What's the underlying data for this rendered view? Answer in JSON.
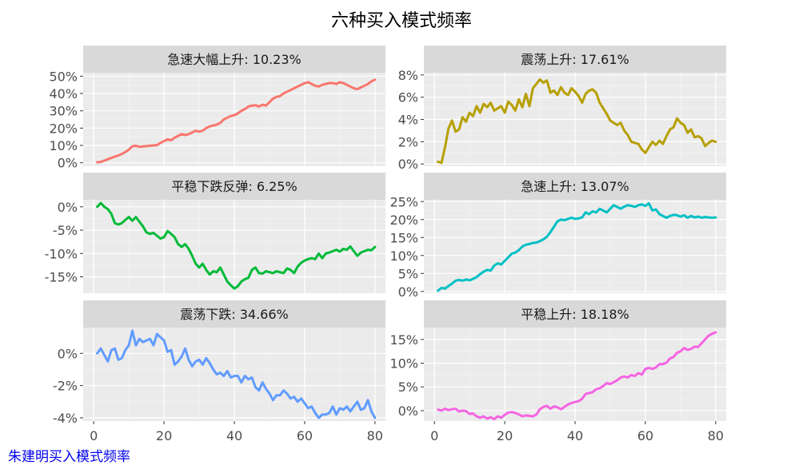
{
  "figure": {
    "title": "六种买入模式频率",
    "footer_link": "朱建明买入模式频率"
  },
  "chart_data": [
    {
      "type": "line",
      "title": "急速大幅上升: 10.23%",
      "color": "#F8766D",
      "xlim": [
        -3,
        83
      ],
      "ylim": [
        -2,
        52
      ],
      "yticks": [
        0,
        10,
        20,
        30,
        40,
        50
      ],
      "ytick_labels": [
        "0%",
        "10%",
        "20%",
        "30%",
        "40%",
        "50%"
      ],
      "x": [
        1,
        2,
        3,
        4,
        5,
        6,
        7,
        8,
        9,
        10,
        11,
        12,
        13,
        14,
        15,
        16,
        17,
        18,
        19,
        20,
        21,
        22,
        23,
        24,
        25,
        26,
        27,
        28,
        29,
        30,
        31,
        32,
        33,
        34,
        35,
        36,
        37,
        38,
        39,
        40,
        41,
        42,
        43,
        44,
        45,
        46,
        47,
        48,
        49,
        50,
        51,
        52,
        53,
        54,
        55,
        56,
        57,
        58,
        59,
        60,
        61,
        62,
        63,
        64,
        65,
        66,
        67,
        68,
        69,
        70,
        71,
        72,
        73,
        74,
        75,
        76,
        77,
        78,
        79,
        80
      ],
      "y": [
        0.3,
        0.5,
        1.2,
        2,
        2.8,
        3.5,
        4.2,
        5,
        6.2,
        7.5,
        9.5,
        9.8,
        9.2,
        9.4,
        9.6,
        9.8,
        10,
        10.2,
        11.5,
        12.5,
        13.5,
        13,
        14.5,
        15.5,
        16.5,
        16,
        16.5,
        17.5,
        18.5,
        18,
        18.5,
        20,
        21,
        21.5,
        22,
        23,
        25,
        26,
        27,
        27.5,
        28.5,
        30,
        31,
        32.5,
        33,
        33.2,
        32.5,
        33.5,
        33,
        35,
        37,
        38,
        38.5,
        40,
        41,
        42,
        43,
        44,
        45,
        46,
        46.5,
        45.5,
        44.5,
        44,
        45,
        45.5,
        46,
        46,
        45.5,
        46.5,
        46,
        45,
        44,
        43,
        42.5,
        43.5,
        44.5,
        45.5,
        47,
        48
      ]
    },
    {
      "type": "line",
      "title": "震荡上升: 17.61%",
      "color": "#B79F00",
      "xlim": [
        -3,
        83
      ],
      "ylim": [
        -0.2,
        8.2
      ],
      "yticks": [
        0,
        2,
        4,
        6,
        8
      ],
      "ytick_labels": [
        "0%",
        "2%",
        "4%",
        "6%",
        "8%"
      ],
      "x": [
        1,
        2,
        3,
        4,
        5,
        6,
        7,
        8,
        9,
        10,
        11,
        12,
        13,
        14,
        15,
        16,
        17,
        18,
        19,
        20,
        21,
        22,
        23,
        24,
        25,
        26,
        27,
        28,
        29,
        30,
        31,
        32,
        33,
        34,
        35,
        36,
        37,
        38,
        39,
        40,
        41,
        42,
        43,
        44,
        45,
        46,
        47,
        48,
        49,
        50,
        51,
        52,
        53,
        54,
        55,
        56,
        57,
        58,
        59,
        60,
        61,
        62,
        63,
        64,
        65,
        66,
        67,
        68,
        69,
        70,
        71,
        72,
        73,
        74,
        75,
        76,
        77,
        78,
        79,
        80
      ],
      "y": [
        0.2,
        0.1,
        1.5,
        3.2,
        3.9,
        2.9,
        3.1,
        4.2,
        3.8,
        4.6,
        4.3,
        5.2,
        4.6,
        5.4,
        5.1,
        5.5,
        4.8,
        5,
        5.2,
        4.6,
        5.6,
        5.3,
        4.8,
        5.8,
        5.1,
        6.3,
        5.2,
        6.8,
        7.2,
        7.6,
        7.3,
        7.5,
        6.4,
        6.6,
        6.2,
        6.9,
        6.4,
        6.2,
        6.8,
        6.5,
        6.1,
        5.5,
        6.3,
        6.6,
        6.7,
        6.4,
        5.5,
        5,
        4.5,
        3.9,
        3.7,
        3.5,
        3.7,
        3,
        2.6,
        2,
        1.9,
        1.8,
        1.3,
        1,
        1.5,
        2,
        1.7,
        2.1,
        1.8,
        2.5,
        3.1,
        3.3,
        4.1,
        3.7,
        3.5,
        2.8,
        3.1,
        2.4,
        2.5,
        2.3,
        1.6,
        1.9,
        2.1,
        2
      ]
    },
    {
      "type": "line",
      "title": "平稳下跌反弹: 6.25%",
      "color": "#00BA38",
      "xlim": [
        -3,
        83
      ],
      "ylim": [
        -18.5,
        1.5
      ],
      "yticks": [
        0,
        -5,
        -10,
        -15
      ],
      "ytick_labels": [
        "0%",
        "-5%",
        "-10%",
        "-15%"
      ],
      "x": [
        1,
        2,
        3,
        4,
        5,
        6,
        7,
        8,
        9,
        10,
        11,
        12,
        13,
        14,
        15,
        16,
        17,
        18,
        19,
        20,
        21,
        22,
        23,
        24,
        25,
        26,
        27,
        28,
        29,
        30,
        31,
        32,
        33,
        34,
        35,
        36,
        37,
        38,
        39,
        40,
        41,
        42,
        43,
        44,
        45,
        46,
        47,
        48,
        49,
        50,
        51,
        52,
        53,
        54,
        55,
        56,
        57,
        58,
        59,
        60,
        61,
        62,
        63,
        64,
        65,
        66,
        67,
        68,
        69,
        70,
        71,
        72,
        73,
        74,
        75,
        76,
        77,
        78,
        79,
        80
      ],
      "y": [
        0,
        0.8,
        0,
        -0.5,
        -1.5,
        -3.5,
        -3.8,
        -3.5,
        -2.8,
        -2.2,
        -3,
        -2.2,
        -3.2,
        -4.2,
        -5.5,
        -5.8,
        -5.6,
        -6.2,
        -6.8,
        -6.5,
        -5.2,
        -5.8,
        -6.5,
        -8,
        -8.6,
        -8,
        -9,
        -10.5,
        -12.2,
        -13,
        -12.2,
        -13.5,
        -14.5,
        -13.8,
        -14,
        -13,
        -14.5,
        -16,
        -16.8,
        -17.5,
        -17,
        -16,
        -15.5,
        -15.2,
        -13.5,
        -13,
        -14.2,
        -14.3,
        -13.8,
        -14,
        -14.2,
        -13.8,
        -14,
        -14.2,
        -13.2,
        -13.5,
        -14.2,
        -12.8,
        -12,
        -11.5,
        -11.2,
        -11,
        -11.2,
        -10,
        -11,
        -10,
        -9.8,
        -9.5,
        -9.2,
        -9.6,
        -9,
        -9.2,
        -8.5,
        -9.5,
        -10.5,
        -9.8,
        -9.5,
        -9.2,
        -9.3,
        -8.6
      ]
    },
    {
      "type": "line",
      "title": "急速上升: 13.07%",
      "color": "#00BFC4",
      "xlim": [
        -3,
        83
      ],
      "ylim": [
        -0.5,
        25.5
      ],
      "yticks": [
        0,
        5,
        10,
        15,
        20,
        25
      ],
      "ytick_labels": [
        "0%",
        "5%",
        "10%",
        "15%",
        "20%",
        "25%"
      ],
      "x": [
        1,
        2,
        3,
        4,
        5,
        6,
        7,
        8,
        9,
        10,
        11,
        12,
        13,
        14,
        15,
        16,
        17,
        18,
        19,
        20,
        21,
        22,
        23,
        24,
        25,
        26,
        27,
        28,
        29,
        30,
        31,
        32,
        33,
        34,
        35,
        36,
        37,
        38,
        39,
        40,
        41,
        42,
        43,
        44,
        45,
        46,
        47,
        48,
        49,
        50,
        51,
        52,
        53,
        54,
        55,
        56,
        57,
        58,
        59,
        60,
        61,
        62,
        63,
        64,
        65,
        66,
        67,
        68,
        69,
        70,
        71,
        72,
        73,
        74,
        75,
        76,
        77,
        78,
        79,
        80
      ],
      "y": [
        0.2,
        1,
        0.8,
        1.5,
        2.2,
        3,
        3.2,
        3,
        3.3,
        3.1,
        3.5,
        4,
        4.8,
        5.5,
        6,
        5.8,
        7.2,
        7.8,
        7.5,
        8.5,
        9.5,
        10.5,
        10.8,
        11.5,
        12.5,
        13,
        13.2,
        13.5,
        13.6,
        14,
        14.5,
        15.2,
        16.5,
        18,
        19.5,
        20,
        19.8,
        20.2,
        20.5,
        20.2,
        20.3,
        20.6,
        22,
        21.5,
        22.3,
        22,
        23,
        22.5,
        22,
        23,
        24,
        23.5,
        23,
        23.6,
        24,
        23.8,
        23.5,
        24,
        24.2,
        23.8,
        24.5,
        22.5,
        22.8,
        21.5,
        21,
        20.5,
        21,
        21.3,
        21.2,
        20.8,
        21.2,
        20.5,
        21,
        20.6,
        20.8,
        20.5,
        20.7,
        20.6,
        20.5,
        20.6
      ]
    },
    {
      "type": "line",
      "title": "震荡下跌: 34.66%",
      "color": "#619CFF",
      "xlim": [
        -3,
        83
      ],
      "ylim": [
        -4.2,
        1.6
      ],
      "yticks": [
        0,
        -2,
        -4
      ],
      "ytick_labels": [
        "0%",
        "-2%",
        "-4%"
      ],
      "x": [
        1,
        2,
        3,
        4,
        5,
        6,
        7,
        8,
        9,
        10,
        11,
        12,
        13,
        14,
        15,
        16,
        17,
        18,
        19,
        20,
        21,
        22,
        23,
        24,
        25,
        26,
        27,
        28,
        29,
        30,
        31,
        32,
        33,
        34,
        35,
        36,
        37,
        38,
        39,
        40,
        41,
        42,
        43,
        44,
        45,
        46,
        47,
        48,
        49,
        50,
        51,
        52,
        53,
        54,
        55,
        56,
        57,
        58,
        59,
        60,
        61,
        62,
        63,
        64,
        65,
        66,
        67,
        68,
        69,
        70,
        71,
        72,
        73,
        74,
        75,
        76,
        77,
        78,
        79,
        80
      ],
      "y": [
        0,
        0.3,
        -0.1,
        -0.5,
        0.2,
        0.3,
        -0.4,
        -0.3,
        0.2,
        0.5,
        1.4,
        0.5,
        0.9,
        0.7,
        0.8,
        0.9,
        0.5,
        1.2,
        1,
        0.8,
        0.1,
        0.2,
        -0.7,
        -0.5,
        -0.2,
        0.3,
        -0.4,
        -0.8,
        -0.5,
        -0.4,
        -0.7,
        -0.3,
        -0.6,
        -1,
        -1.3,
        -1.2,
        -1.4,
        -1.1,
        -1.5,
        -1.4,
        -1.4,
        -1.8,
        -1.4,
        -1.6,
        -1.5,
        -2.1,
        -2.3,
        -1.8,
        -2.2,
        -2.5,
        -2.9,
        -2.6,
        -2.6,
        -2.3,
        -2.5,
        -2.8,
        -2.7,
        -3,
        -2.8,
        -3.1,
        -3.4,
        -3.3,
        -3.7,
        -4,
        -3.8,
        -3.8,
        -3.7,
        -3.3,
        -3.8,
        -3.4,
        -3.5,
        -3.3,
        -3.6,
        -3.3,
        -3,
        -3.5,
        -3.4,
        -2.9,
        -3.6,
        -4
      ]
    },
    {
      "type": "line",
      "title": "平稳上升: 18.18%",
      "color": "#F564E3",
      "xlim": [
        -3,
        83
      ],
      "ylim": [
        -2.2,
        17.5
      ],
      "yticks": [
        0,
        5,
        10,
        15
      ],
      "ytick_labels": [
        "0%",
        "5%",
        "10%",
        "15%"
      ],
      "x": [
        1,
        2,
        3,
        4,
        5,
        6,
        7,
        8,
        9,
        10,
        11,
        12,
        13,
        14,
        15,
        16,
        17,
        18,
        19,
        20,
        21,
        22,
        23,
        24,
        25,
        26,
        27,
        28,
        29,
        30,
        31,
        32,
        33,
        34,
        35,
        36,
        37,
        38,
        39,
        40,
        41,
        42,
        43,
        44,
        45,
        46,
        47,
        48,
        49,
        50,
        51,
        52,
        53,
        54,
        55,
        56,
        57,
        58,
        59,
        60,
        61,
        62,
        63,
        64,
        65,
        66,
        67,
        68,
        69,
        70,
        71,
        72,
        73,
        74,
        75,
        76,
        77,
        78,
        79,
        80
      ],
      "y": [
        0.2,
        0,
        0.4,
        0.1,
        0.3,
        0.4,
        -0.2,
        0,
        -0.1,
        -0.7,
        -0.6,
        -1.2,
        -1.5,
        -1.2,
        -1.7,
        -1.4,
        -1.8,
        -1.2,
        -1.5,
        -0.9,
        -0.4,
        -0.3,
        -0.5,
        -0.8,
        -1.2,
        -1,
        -1.1,
        -1.2,
        -0.8,
        0.3,
        0.8,
        1,
        0.4,
        0.9,
        0.7,
        0.3,
        0.8,
        1.3,
        1.6,
        1.8,
        2,
        2.5,
        3.5,
        3.7,
        3.9,
        4.5,
        4.7,
        5.2,
        5.8,
        5.6,
        6,
        6.4,
        7,
        7.2,
        7,
        7.5,
        7.3,
        7.9,
        7.6,
        8.8,
        9,
        8.8,
        9.1,
        9.8,
        9.8,
        10.1,
        11,
        11.3,
        12.2,
        12.5,
        13.2,
        12.8,
        13,
        13.5,
        13.4,
        14.2,
        15,
        15.8,
        16.2,
        16.5
      ]
    }
  ]
}
